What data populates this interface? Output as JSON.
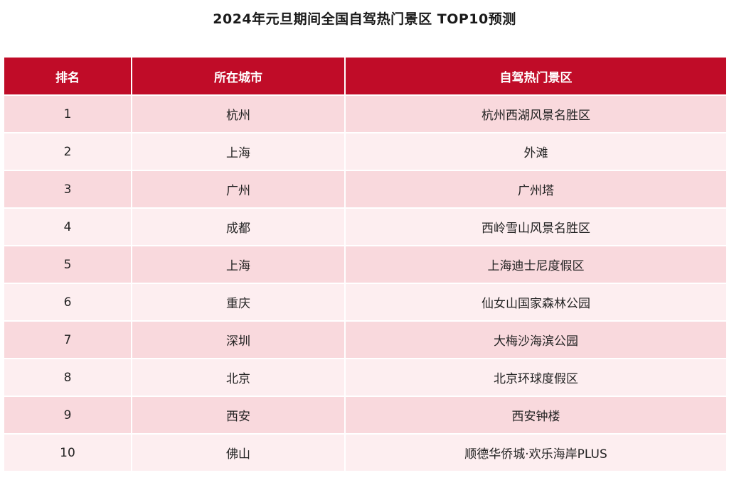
{
  "chart_data": {
    "type": "table",
    "title": "2024年元旦期间全国自驾热门景区 TOP10预测",
    "columns": [
      "排名",
      "所在城市",
      "自驾热门景区"
    ],
    "rows": [
      {
        "rank": "1",
        "city": "杭州",
        "spot": "杭州西湖风景名胜区"
      },
      {
        "rank": "2",
        "city": "上海",
        "spot": "外滩"
      },
      {
        "rank": "3",
        "city": "广州",
        "spot": "广州塔"
      },
      {
        "rank": "4",
        "city": "成都",
        "spot": "西岭雪山风景名胜区"
      },
      {
        "rank": "5",
        "city": "上海",
        "spot": "上海迪士尼度假区"
      },
      {
        "rank": "6",
        "city": "重庆",
        "spot": "仙女山国家森林公园"
      },
      {
        "rank": "7",
        "city": "深圳",
        "spot": "大梅沙海滨公园"
      },
      {
        "rank": "8",
        "city": "北京",
        "spot": "北京环球度假区"
      },
      {
        "rank": "9",
        "city": "西安",
        "spot": "西安钟楼"
      },
      {
        "rank": "10",
        "city": "佛山",
        "spot": "顺德华侨城·欢乐海岸PLUS"
      }
    ]
  },
  "colors": {
    "header_bg": "#c00c28",
    "row_odd_bg": "#f9d9dd",
    "row_even_bg": "#fdeef0"
  }
}
